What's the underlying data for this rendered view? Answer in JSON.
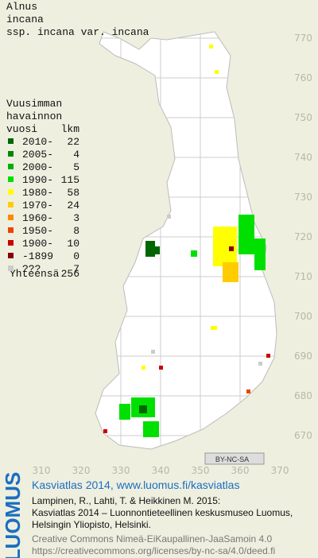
{
  "title": [
    "Alnus",
    "incana",
    "ssp. incana var. incana"
  ],
  "legend": {
    "title": [
      "Vuusimman",
      "havainnon"
    ],
    "col_headers": [
      "vuosi",
      "lkm"
    ],
    "items": [
      {
        "label": "2010-",
        "count": 22,
        "color": "#006600"
      },
      {
        "label": "2005-",
        "count": 4,
        "color": "#008800"
      },
      {
        "label": "2000-",
        "count": 5,
        "color": "#00b000"
      },
      {
        "label": "1990-",
        "count": 115,
        "color": "#00e000"
      },
      {
        "label": "1980-",
        "count": 58,
        "color": "#ffff00"
      },
      {
        "label": "1970-",
        "count": 24,
        "color": "#ffcc00"
      },
      {
        "label": "1960-",
        "count": 3,
        "color": "#ff8800"
      },
      {
        "label": "1950-",
        "count": 8,
        "color": "#ee4400"
      },
      {
        "label": "1900-",
        "count": 10,
        "color": "#cc0000"
      },
      {
        "label": "-1899",
        "count": 0,
        "color": "#880000"
      },
      {
        "label": "???",
        "count": 7,
        "color": "#cccccc"
      }
    ],
    "total_label": "Yhteensä",
    "total": 256
  },
  "map": {
    "yticks": [
      770,
      760,
      750,
      740,
      730,
      720,
      710,
      700,
      690,
      680,
      670
    ],
    "xticks": [
      310,
      320,
      330,
      340,
      350,
      360,
      370
    ]
  },
  "license_badge": "BY-NC-SA",
  "footer": {
    "brand": "LUOMUS",
    "heading": "Kasviatlas 2014, www.luomus.fi/kasviatlas",
    "lines": [
      "Lampinen, R., Lahti, T. & Heikkinen M. 2015:",
      "Kasviatlas 2014 – Luonnontieteellinen keskusmuseo Luomus,",
      "Helsingin Yliopisto, Helsinki."
    ],
    "license_lines": [
      "Creative Commons Nimeä-EiKaupallinen-JaaSamoin 4.0",
      "https://creativecommons.org/licenses/by-nc-sa/4.0/deed.fi"
    ]
  }
}
